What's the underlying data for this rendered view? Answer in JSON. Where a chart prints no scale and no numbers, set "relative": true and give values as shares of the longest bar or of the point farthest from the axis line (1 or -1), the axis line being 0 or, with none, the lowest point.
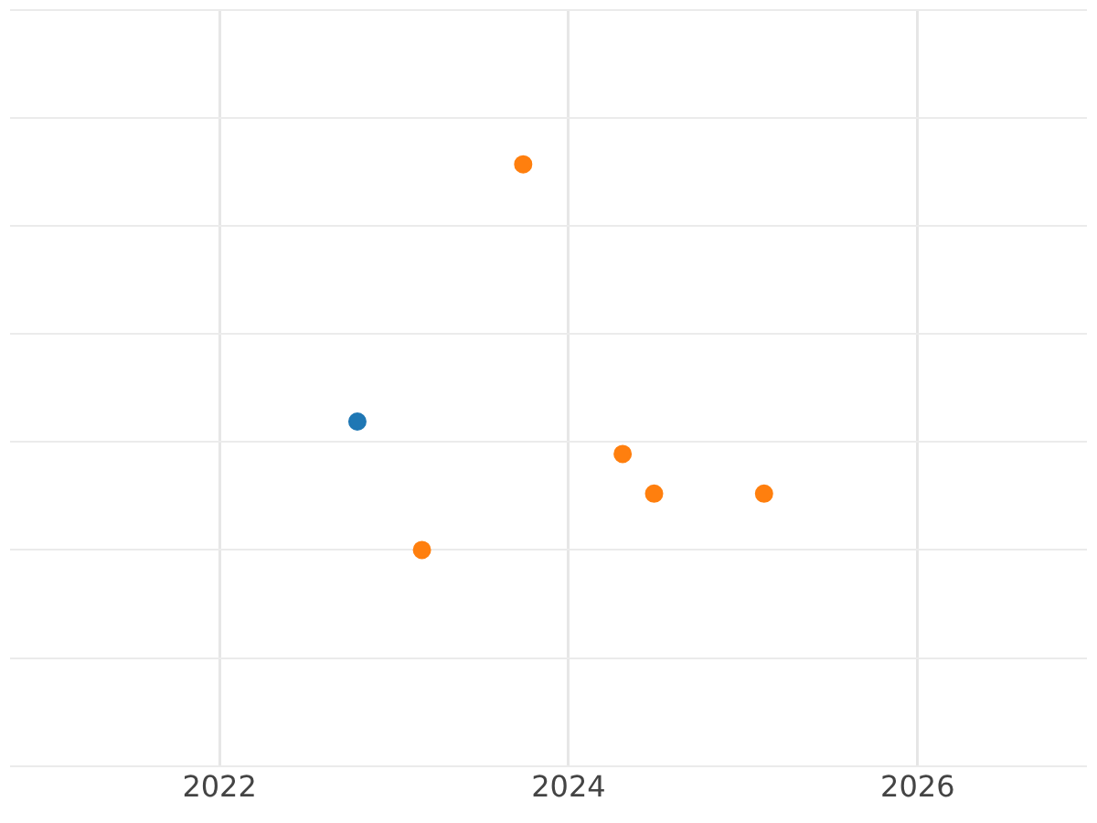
{
  "chart_data": {
    "type": "scatter",
    "relative": true,
    "grid": true,
    "marker": "circle",
    "legend": false,
    "xlim": [
      2020.8,
      2026.97
    ],
    "xticks": [
      2022,
      2024,
      2026
    ],
    "series": [
      {
        "color": "#1f77b4",
        "x": [
          2022.79
        ],
        "values": [
          0.333
        ]
      },
      {
        "color": "#ff7f0e",
        "x": [
          2023.74,
          2023.16,
          2024.31,
          2024.49,
          2025.12
        ],
        "values": [
          1,
          0,
          0.249,
          0.146,
          0.146
        ]
      }
    ]
  }
}
